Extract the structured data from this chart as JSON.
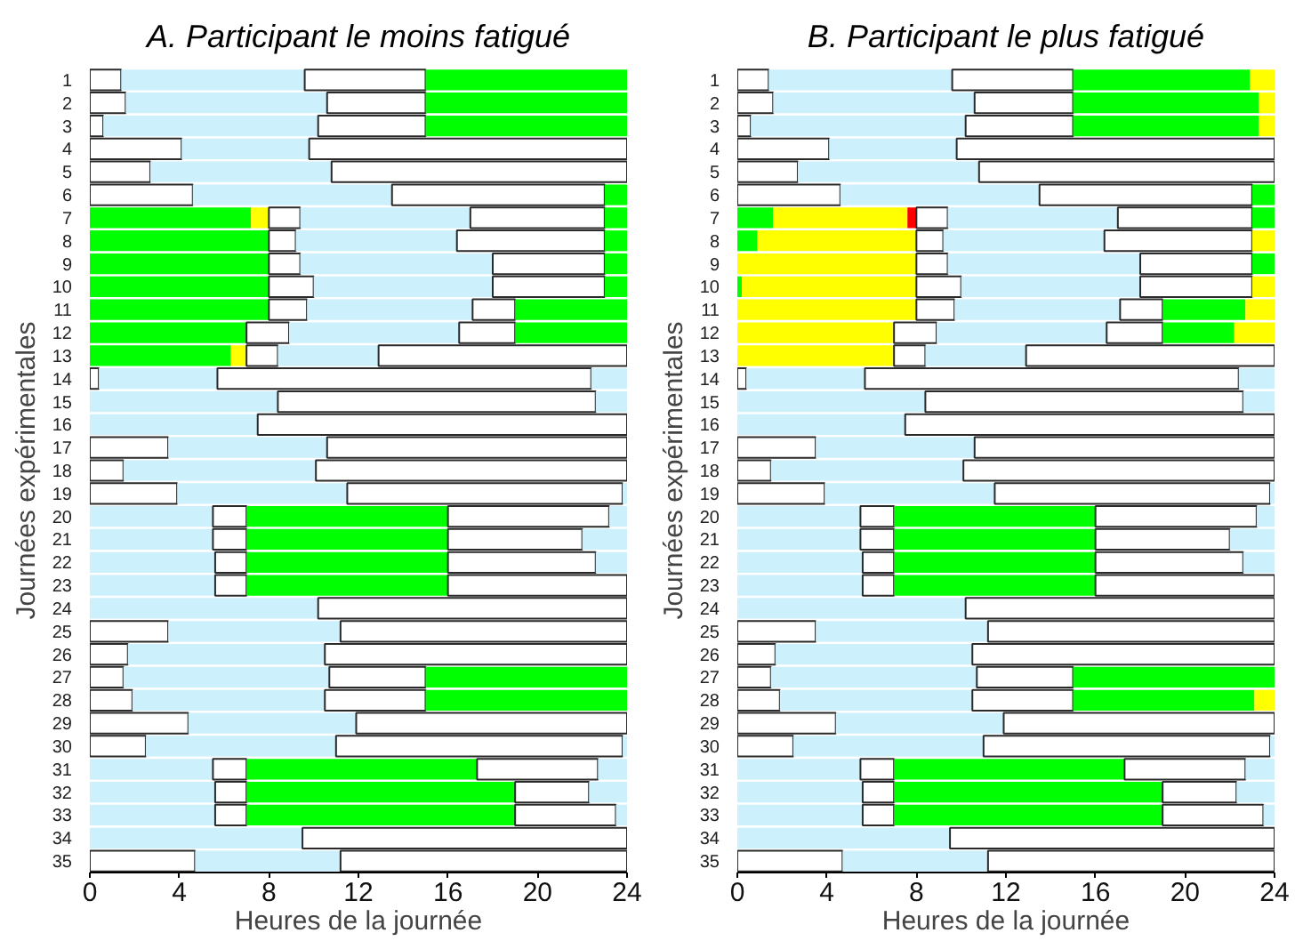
{
  "chart_data": [
    {
      "type": "bar",
      "orientation": "horizontal",
      "stacked": true,
      "title": "A. Participant le moins fatigué",
      "xlabel": "Heures de la journée",
      "ylabel": "Journées expérimentales",
      "categories": [
        "1",
        "2",
        "3",
        "4",
        "5",
        "6",
        "7",
        "8",
        "9",
        "10",
        "11",
        "12",
        "13",
        "14",
        "15",
        "16",
        "17",
        "18",
        "19",
        "20",
        "21",
        "22",
        "23",
        "24",
        "25",
        "26",
        "27",
        "28",
        "29",
        "30",
        "31",
        "32",
        "33",
        "34",
        "35"
      ],
      "xlim": [
        0,
        24
      ],
      "xticks": [
        0,
        4,
        8,
        12,
        16,
        20,
        24
      ],
      "series": [
        {
          "values": [
            1.4,
            1.6,
            0.6,
            4.1,
            2.7,
            4.6,
            7.2,
            8.0,
            8.0,
            8.0,
            8.0,
            7.0,
            6.3,
            0.4,
            8.4,
            7.5,
            3.5,
            1.5,
            3.9,
            5.5,
            5.5,
            5.6,
            5.6,
            10.2,
            3.5,
            1.7,
            1.5,
            1.9,
            4.4,
            2.5,
            5.5,
            5.6,
            5.6,
            9.5,
            4.7
          ],
          "colors": [
            "#ffffff",
            "#ffffff",
            "#ffffff",
            "#ffffff",
            "#ffffff",
            "#ffffff",
            "#00ff00",
            "#00ff00",
            "#00ff00",
            "#00ff00",
            "#00ff00",
            "#00ff00",
            "#00ff00",
            "#ffffff",
            "#ccf0fc",
            "#ccf0fc",
            "#ffffff",
            "#ffffff",
            "#ffffff",
            "#ccf0fc",
            "#ccf0fc",
            "#ccf0fc",
            "#ccf0fc",
            "#ccf0fc",
            "#ffffff",
            "#ffffff",
            "#ffffff",
            "#ffffff",
            "#ffffff",
            "#ffffff",
            "#ccf0fc",
            "#ccf0fc",
            "#ccf0fc",
            "#ccf0fc",
            "#ffffff"
          ]
        },
        {
          "values": [
            8.2,
            9.0,
            9.6,
            5.7,
            8.1,
            8.9,
            0.8,
            1.2,
            1.4,
            2.0,
            1.7,
            1.9,
            0.7,
            5.3,
            14.2,
            16.5,
            7.1,
            8.6,
            7.6,
            1.5,
            1.5,
            1.4,
            1.4,
            13.8,
            7.7,
            8.8,
            9.2,
            8.6,
            7.5,
            8.5,
            1.5,
            1.4,
            1.4,
            14.5,
            6.5
          ],
          "colors": [
            "#ccf0fc",
            "#ccf0fc",
            "#ccf0fc",
            "#ccf0fc",
            "#ccf0fc",
            "#ccf0fc",
            "#ffff00",
            "#ffffff",
            "#ffffff",
            "#ffffff",
            "#ffffff",
            "#ffffff",
            "#ffff00",
            "#ccf0fc",
            "#ffffff",
            "#ffffff",
            "#ccf0fc",
            "#ccf0fc",
            "#ccf0fc",
            "#ffffff",
            "#ffffff",
            "#ffffff",
            "#ffffff",
            "#ffffff",
            "#ccf0fc",
            "#ccf0fc",
            "#ccf0fc",
            "#ccf0fc",
            "#ccf0fc",
            "#ccf0fc",
            "#ffffff",
            "#ffffff",
            "#ffffff",
            "#ffffff",
            "#ccf0fc"
          ]
        },
        {
          "values": [
            5.4,
            4.4,
            4.8,
            14.2,
            13.2,
            9.5,
            1.4,
            7.2,
            8.6,
            8.0,
            7.4,
            7.6,
            1.4,
            16.7,
            1.4,
            null,
            13.4,
            13.9,
            12.3,
            9.0,
            9.0,
            9.0,
            9.0,
            null,
            12.8,
            13.5,
            4.3,
            4.5,
            12.1,
            12.8,
            10.3,
            12.0,
            12.0,
            null,
            12.8
          ],
          "colors": [
            "#ffffff",
            "#ffffff",
            "#ffffff",
            "#ffffff",
            "#ffffff",
            "#ffffff",
            "#ffffff",
            "#ccf0fc",
            "#ccf0fc",
            "#ccf0fc",
            "#ccf0fc",
            "#ccf0fc",
            "#ffffff",
            "#ffffff",
            "#ccf0fc",
            null,
            "#ffffff",
            "#ffffff",
            "#ffffff",
            "#00ff00",
            "#00ff00",
            "#00ff00",
            "#00ff00",
            null,
            "#ffffff",
            "#ffffff",
            "#ffffff",
            "#ffffff",
            "#ffffff",
            "#ffffff",
            "#00ff00",
            "#00ff00",
            "#00ff00",
            null,
            "#ffffff"
          ]
        },
        {
          "values": [
            9.0,
            9.0,
            9.0,
            null,
            null,
            1.0,
            7.6,
            6.6,
            5.0,
            5.0,
            1.9,
            2.5,
            4.5,
            1.6,
            null,
            null,
            null,
            null,
            0.2,
            7.2,
            6.0,
            6.6,
            8.0,
            null,
            null,
            null,
            9.0,
            9.0,
            null,
            0.2,
            5.4,
            3.3,
            4.5,
            null,
            null
          ],
          "colors": [
            "#00ff00",
            "#00ff00",
            "#00ff00",
            null,
            null,
            "#00ff00",
            "#ccf0fc",
            "#ffffff",
            "#ffffff",
            "#ffffff",
            "#ffffff",
            "#ffffff",
            "#ccf0fc",
            "#ccf0fc",
            null,
            null,
            null,
            null,
            "#ccf0fc",
            "#ffffff",
            "#ffffff",
            "#ffffff",
            "#ffffff",
            null,
            null,
            null,
            "#00ff00",
            "#00ff00",
            null,
            "#ccf0fc",
            "#ffffff",
            "#ffffff",
            "#ffffff",
            null,
            null
          ]
        },
        {
          "values": [
            null,
            null,
            null,
            null,
            null,
            null,
            6.0,
            1.0,
            1.0,
            1.0,
            5.0,
            5.0,
            11.1,
            null,
            null,
            null,
            null,
            null,
            null,
            0.8,
            2.0,
            1.4,
            null,
            null,
            null,
            null,
            null,
            null,
            null,
            null,
            1.3,
            1.7,
            0.5,
            null,
            null
          ],
          "colors": [
            null,
            null,
            null,
            null,
            null,
            null,
            "#ffffff",
            "#00ff00",
            "#00ff00",
            "#00ff00",
            "#00ff00",
            "#00ff00",
            "#ffffff",
            null,
            null,
            null,
            null,
            null,
            null,
            "#ccf0fc",
            "#ccf0fc",
            "#ccf0fc",
            null,
            null,
            null,
            null,
            null,
            null,
            null,
            null,
            "#ccf0fc",
            "#ccf0fc",
            "#ccf0fc",
            null,
            null
          ]
        },
        {
          "values": [
            null,
            null,
            null,
            null,
            null,
            null,
            1.0,
            null,
            null,
            null,
            null,
            null,
            null,
            null,
            null,
            null,
            null,
            null,
            null,
            null,
            null,
            null,
            null,
            null,
            null,
            null,
            null,
            null,
            null,
            null,
            null,
            null,
            null,
            null,
            null
          ],
          "colors": [
            null,
            null,
            null,
            null,
            null,
            null,
            "#00ff00",
            null,
            null,
            null,
            null,
            null,
            null,
            null,
            null,
            null,
            null,
            null,
            null,
            null,
            null,
            null,
            null,
            null,
            null,
            null,
            null,
            null,
            null,
            null,
            null,
            null,
            null,
            null,
            null
          ]
        }
      ]
    },
    {
      "type": "bar",
      "orientation": "horizontal",
      "stacked": true,
      "title": "B. Participant le plus fatigué",
      "xlabel": "Heures de la journée",
      "ylabel": "Journées expérimentales",
      "categories": [
        "1",
        "2",
        "3",
        "4",
        "5",
        "6",
        "7",
        "8",
        "9",
        "10",
        "11",
        "12",
        "13",
        "14",
        "15",
        "16",
        "17",
        "18",
        "19",
        "20",
        "21",
        "22",
        "23",
        "24",
        "25",
        "26",
        "27",
        "28",
        "29",
        "30",
        "31",
        "32",
        "33",
        "34",
        "35"
      ],
      "xlim": [
        0,
        24
      ],
      "xticks": [
        0,
        4,
        8,
        12,
        16,
        20,
        24
      ],
      "series": [
        {
          "values": [
            1.4,
            1.6,
            0.6,
            4.1,
            2.7,
            4.6,
            1.6,
            0.9,
            8.0,
            0.2,
            8.0,
            7.0,
            7.0,
            0.4,
            8.4,
            7.5,
            3.5,
            1.5,
            3.9,
            5.5,
            5.5,
            5.6,
            5.6,
            10.2,
            3.5,
            1.7,
            1.5,
            1.9,
            4.4,
            2.5,
            5.5,
            5.6,
            5.6,
            9.5,
            4.7
          ],
          "colors": [
            "#ffffff",
            "#ffffff",
            "#ffffff",
            "#ffffff",
            "#ffffff",
            "#ffffff",
            "#00ff00",
            "#00ff00",
            "#ffff00",
            "#00ff00",
            "#ffff00",
            "#ffff00",
            "#ffff00",
            "#ffffff",
            "#ccf0fc",
            "#ccf0fc",
            "#ffffff",
            "#ffffff",
            "#ffffff",
            "#ccf0fc",
            "#ccf0fc",
            "#ccf0fc",
            "#ccf0fc",
            "#ccf0fc",
            "#ffffff",
            "#ffffff",
            "#ffffff",
            "#ffffff",
            "#ffffff",
            "#ffffff",
            "#ccf0fc",
            "#ccf0fc",
            "#ccf0fc",
            "#ccf0fc",
            "#ffffff"
          ]
        },
        {
          "values": [
            8.2,
            9.0,
            9.6,
            5.7,
            8.1,
            8.9,
            6.0,
            7.1,
            1.4,
            7.8,
            1.7,
            1.9,
            1.4,
            5.3,
            14.2,
            16.5,
            7.1,
            8.6,
            7.6,
            1.5,
            1.5,
            1.4,
            1.4,
            13.8,
            7.7,
            8.8,
            9.2,
            8.6,
            7.5,
            8.5,
            1.5,
            1.4,
            1.4,
            14.5,
            6.5
          ],
          "colors": [
            "#ccf0fc",
            "#ccf0fc",
            "#ccf0fc",
            "#ccf0fc",
            "#ccf0fc",
            "#ccf0fc",
            "#ffff00",
            "#ffff00",
            "#ffffff",
            "#ffff00",
            "#ffffff",
            "#ffffff",
            "#ffffff",
            "#ccf0fc",
            "#ffffff",
            "#ffffff",
            "#ccf0fc",
            "#ccf0fc",
            "#ccf0fc",
            "#ffffff",
            "#ffffff",
            "#ffffff",
            "#ffffff",
            "#ffffff",
            "#ccf0fc",
            "#ccf0fc",
            "#ccf0fc",
            "#ccf0fc",
            "#ccf0fc",
            "#ccf0fc",
            "#ffffff",
            "#ffffff",
            "#ffffff",
            "#ffffff",
            "#ccf0fc"
          ]
        },
        {
          "values": [
            5.4,
            4.4,
            4.8,
            14.2,
            13.2,
            9.5,
            0.4,
            1.2,
            8.6,
            2.0,
            7.4,
            7.6,
            4.5,
            16.7,
            1.4,
            null,
            13.4,
            13.9,
            12.3,
            9.0,
            9.0,
            9.0,
            9.0,
            null,
            12.8,
            13.5,
            4.3,
            4.5,
            12.1,
            12.8,
            10.3,
            12.0,
            12.0,
            null,
            12.8
          ],
          "colors": [
            "#ffffff",
            "#ffffff",
            "#ffffff",
            "#ffffff",
            "#ffffff",
            "#ffffff",
            "#ff0000",
            "#ffffff",
            "#ccf0fc",
            "#ffffff",
            "#ccf0fc",
            "#ccf0fc",
            "#ccf0fc",
            "#ffffff",
            "#ccf0fc",
            null,
            "#ffffff",
            "#ffffff",
            "#ffffff",
            "#00ff00",
            "#00ff00",
            "#00ff00",
            "#00ff00",
            null,
            "#ffffff",
            "#ffffff",
            "#ffffff",
            "#ffffff",
            "#ffffff",
            "#ffffff",
            "#00ff00",
            "#00ff00",
            "#00ff00",
            null,
            "#ffffff"
          ]
        },
        {
          "values": [
            7.9,
            8.3,
            8.3,
            null,
            null,
            1.0,
            1.4,
            7.2,
            5.0,
            8.0,
            1.9,
            2.5,
            11.1,
            1.6,
            null,
            null,
            null,
            null,
            0.2,
            7.2,
            6.0,
            6.6,
            8.0,
            null,
            null,
            null,
            9.0,
            8.1,
            null,
            0.2,
            5.4,
            3.3,
            4.5,
            null,
            null
          ],
          "colors": [
            "#00ff00",
            "#00ff00",
            "#00ff00",
            null,
            null,
            "#00ff00",
            "#ffffff",
            "#ccf0fc",
            "#ffffff",
            "#ccf0fc",
            "#ffffff",
            "#ffffff",
            "#ffffff",
            "#ccf0fc",
            null,
            null,
            null,
            null,
            "#ccf0fc",
            "#ffffff",
            "#ffffff",
            "#ffffff",
            "#ffffff",
            null,
            null,
            null,
            "#00ff00",
            "#00ff00",
            null,
            "#ccf0fc",
            "#ffffff",
            "#ffffff",
            "#ffffff",
            null,
            null
          ]
        },
        {
          "values": [
            1.1,
            0.7,
            0.7,
            null,
            null,
            null,
            7.6,
            6.6,
            1.0,
            5.0,
            3.7,
            3.2,
            null,
            null,
            null,
            null,
            null,
            null,
            null,
            0.8,
            2.0,
            1.4,
            null,
            null,
            null,
            null,
            null,
            0.9,
            null,
            null,
            1.3,
            1.7,
            0.5,
            null,
            null
          ],
          "colors": [
            "#ffff00",
            "#ffff00",
            "#ffff00",
            null,
            null,
            null,
            "#ccf0fc",
            "#ffffff",
            "#00ff00",
            "#ffffff",
            "#00ff00",
            "#00ff00",
            null,
            null,
            null,
            null,
            null,
            null,
            null,
            "#ccf0fc",
            "#ccf0fc",
            "#ccf0fc",
            null,
            null,
            null,
            null,
            null,
            "#ffff00",
            null,
            null,
            "#ccf0fc",
            "#ccf0fc",
            "#ccf0fc",
            null,
            null
          ]
        },
        {
          "values": [
            null,
            null,
            null,
            null,
            null,
            null,
            6.0,
            1.0,
            null,
            1.0,
            1.3,
            1.8,
            null,
            null,
            null,
            null,
            null,
            null,
            null,
            null,
            null,
            null,
            null,
            null,
            null,
            null,
            null,
            null,
            null,
            null,
            null,
            null,
            null,
            null,
            null
          ],
          "colors": [
            null,
            null,
            null,
            null,
            null,
            null,
            "#ffffff",
            "#ffff00",
            null,
            "#ffff00",
            "#ffff00",
            "#ffff00",
            null,
            null,
            null,
            null,
            null,
            null,
            null,
            null,
            null,
            null,
            null,
            null,
            null,
            null,
            null,
            null,
            null,
            null,
            null,
            null,
            null,
            null,
            null
          ]
        },
        {
          "values": [
            null,
            null,
            null,
            null,
            null,
            null,
            1.0,
            null,
            null,
            null,
            null,
            null,
            null,
            null,
            null,
            null,
            null,
            null,
            null,
            null,
            null,
            null,
            null,
            null,
            null,
            null,
            null,
            null,
            null,
            null,
            null,
            null,
            null,
            null,
            null
          ],
          "colors": [
            null,
            null,
            null,
            null,
            null,
            null,
            "#00ff00",
            null,
            null,
            null,
            null,
            null,
            null,
            null,
            null,
            null,
            null,
            null,
            null,
            null,
            null,
            null,
            null,
            null,
            null,
            null,
            null,
            null,
            null,
            null,
            null,
            null,
            null,
            null,
            null
          ]
        }
      ]
    }
  ]
}
